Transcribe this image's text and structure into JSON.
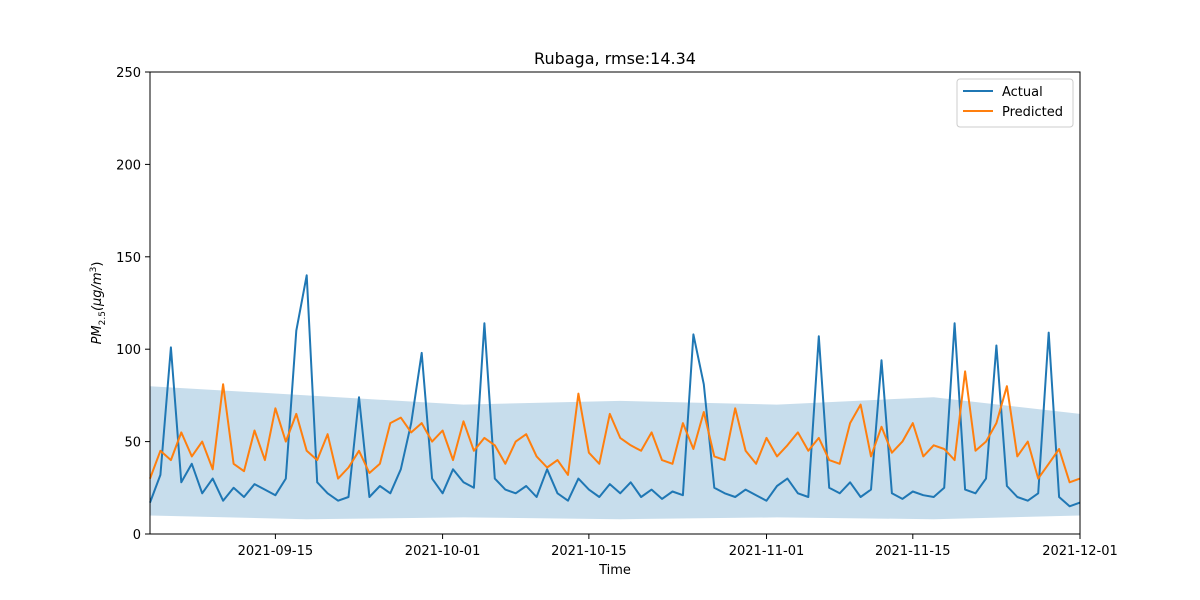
{
  "chart_data": {
    "type": "line",
    "title": "Rubaga, rmse:14.34",
    "xlabel": "Time",
    "ylabel": {
      "base": "PM",
      "subscript": "2.5",
      "units_prefix": "(μg/m",
      "units_superscript": "3",
      "units_suffix": ")"
    },
    "xlim": [
      "2021-09-03",
      "2021-12-01"
    ],
    "ylim": [
      0,
      250
    ],
    "x_ticks": [
      "2021-09-15",
      "2021-10-01",
      "2021-10-15",
      "2021-11-01",
      "2021-11-15",
      "2021-12-01"
    ],
    "y_ticks": [
      0,
      50,
      100,
      150,
      200,
      250
    ],
    "grid": false,
    "legend_position": "top-right",
    "series": [
      {
        "name": "Actual",
        "color": "#1f77b4",
        "points": [
          [
            "2021-09-03",
            17
          ],
          [
            "2021-09-04",
            32
          ],
          [
            "2021-09-05",
            101
          ],
          [
            "2021-09-06",
            28
          ],
          [
            "2021-09-07",
            38
          ],
          [
            "2021-09-08",
            22
          ],
          [
            "2021-09-09",
            30
          ],
          [
            "2021-09-10",
            18
          ],
          [
            "2021-09-11",
            25
          ],
          [
            "2021-09-12",
            20
          ],
          [
            "2021-09-13",
            27
          ],
          [
            "2021-09-14",
            24
          ],
          [
            "2021-09-15",
            21
          ],
          [
            "2021-09-16",
            30
          ],
          [
            "2021-09-17",
            110
          ],
          [
            "2021-09-18",
            140
          ],
          [
            "2021-09-19",
            28
          ],
          [
            "2021-09-20",
            22
          ],
          [
            "2021-09-21",
            18
          ],
          [
            "2021-09-22",
            20
          ],
          [
            "2021-09-23",
            74
          ],
          [
            "2021-09-24",
            20
          ],
          [
            "2021-09-25",
            26
          ],
          [
            "2021-09-26",
            22
          ],
          [
            "2021-09-27",
            35
          ],
          [
            "2021-09-28",
            60
          ],
          [
            "2021-09-29",
            98
          ],
          [
            "2021-09-30",
            30
          ],
          [
            "2021-10-01",
            22
          ],
          [
            "2021-10-02",
            35
          ],
          [
            "2021-10-03",
            28
          ],
          [
            "2021-10-04",
            25
          ],
          [
            "2021-10-05",
            114
          ],
          [
            "2021-10-06",
            30
          ],
          [
            "2021-10-07",
            24
          ],
          [
            "2021-10-08",
            22
          ],
          [
            "2021-10-09",
            26
          ],
          [
            "2021-10-10",
            20
          ],
          [
            "2021-10-11",
            35
          ],
          [
            "2021-10-12",
            22
          ],
          [
            "2021-10-13",
            18
          ],
          [
            "2021-10-14",
            30
          ],
          [
            "2021-10-15",
            24
          ],
          [
            "2021-10-16",
            20
          ],
          [
            "2021-10-17",
            27
          ],
          [
            "2021-10-18",
            22
          ],
          [
            "2021-10-19",
            28
          ],
          [
            "2021-10-20",
            20
          ],
          [
            "2021-10-21",
            24
          ],
          [
            "2021-10-22",
            19
          ],
          [
            "2021-10-23",
            23
          ],
          [
            "2021-10-24",
            21
          ],
          [
            "2021-10-25",
            108
          ],
          [
            "2021-10-26",
            81
          ],
          [
            "2021-10-27",
            25
          ],
          [
            "2021-10-28",
            22
          ],
          [
            "2021-10-29",
            20
          ],
          [
            "2021-10-30",
            24
          ],
          [
            "2021-10-31",
            21
          ],
          [
            "2021-11-01",
            18
          ],
          [
            "2021-11-02",
            26
          ],
          [
            "2021-11-03",
            30
          ],
          [
            "2021-11-04",
            22
          ],
          [
            "2021-11-05",
            20
          ],
          [
            "2021-11-06",
            107
          ],
          [
            "2021-11-07",
            25
          ],
          [
            "2021-11-08",
            22
          ],
          [
            "2021-11-09",
            28
          ],
          [
            "2021-11-10",
            20
          ],
          [
            "2021-11-11",
            24
          ],
          [
            "2021-11-12",
            94
          ],
          [
            "2021-11-13",
            22
          ],
          [
            "2021-11-14",
            19
          ],
          [
            "2021-11-15",
            23
          ],
          [
            "2021-11-16",
            21
          ],
          [
            "2021-11-17",
            20
          ],
          [
            "2021-11-18",
            25
          ],
          [
            "2021-11-19",
            114
          ],
          [
            "2021-11-20",
            24
          ],
          [
            "2021-11-21",
            22
          ],
          [
            "2021-11-22",
            30
          ],
          [
            "2021-11-23",
            102
          ],
          [
            "2021-11-24",
            26
          ],
          [
            "2021-11-25",
            20
          ],
          [
            "2021-11-26",
            18
          ],
          [
            "2021-11-27",
            22
          ],
          [
            "2021-11-28",
            109
          ],
          [
            "2021-11-29",
            20
          ],
          [
            "2021-11-30",
            15
          ],
          [
            "2021-12-01",
            17
          ]
        ]
      },
      {
        "name": "Predicted",
        "color": "#ff7f0e",
        "points": [
          [
            "2021-09-03",
            30
          ],
          [
            "2021-09-04",
            45
          ],
          [
            "2021-09-05",
            40
          ],
          [
            "2021-09-06",
            55
          ],
          [
            "2021-09-07",
            42
          ],
          [
            "2021-09-08",
            50
          ],
          [
            "2021-09-09",
            35
          ],
          [
            "2021-09-10",
            81
          ],
          [
            "2021-09-11",
            38
          ],
          [
            "2021-09-12",
            34
          ],
          [
            "2021-09-13",
            56
          ],
          [
            "2021-09-14",
            40
          ],
          [
            "2021-09-15",
            68
          ],
          [
            "2021-09-16",
            50
          ],
          [
            "2021-09-17",
            65
          ],
          [
            "2021-09-18",
            45
          ],
          [
            "2021-09-19",
            40
          ],
          [
            "2021-09-20",
            54
          ],
          [
            "2021-09-21",
            30
          ],
          [
            "2021-09-22",
            36
          ],
          [
            "2021-09-23",
            45
          ],
          [
            "2021-09-24",
            33
          ],
          [
            "2021-09-25",
            38
          ],
          [
            "2021-09-26",
            60
          ],
          [
            "2021-09-27",
            63
          ],
          [
            "2021-09-28",
            55
          ],
          [
            "2021-09-29",
            60
          ],
          [
            "2021-09-30",
            50
          ],
          [
            "2021-10-01",
            56
          ],
          [
            "2021-10-02",
            40
          ],
          [
            "2021-10-03",
            61
          ],
          [
            "2021-10-04",
            45
          ],
          [
            "2021-10-05",
            52
          ],
          [
            "2021-10-06",
            48
          ],
          [
            "2021-10-07",
            38
          ],
          [
            "2021-10-08",
            50
          ],
          [
            "2021-10-09",
            54
          ],
          [
            "2021-10-10",
            42
          ],
          [
            "2021-10-11",
            36
          ],
          [
            "2021-10-12",
            40
          ],
          [
            "2021-10-13",
            32
          ],
          [
            "2021-10-14",
            76
          ],
          [
            "2021-10-15",
            44
          ],
          [
            "2021-10-16",
            38
          ],
          [
            "2021-10-17",
            65
          ],
          [
            "2021-10-18",
            52
          ],
          [
            "2021-10-19",
            48
          ],
          [
            "2021-10-20",
            45
          ],
          [
            "2021-10-21",
            55
          ],
          [
            "2021-10-22",
            40
          ],
          [
            "2021-10-23",
            38
          ],
          [
            "2021-10-24",
            60
          ],
          [
            "2021-10-25",
            46
          ],
          [
            "2021-10-26",
            66
          ],
          [
            "2021-10-27",
            42
          ],
          [
            "2021-10-28",
            40
          ],
          [
            "2021-10-29",
            68
          ],
          [
            "2021-10-30",
            45
          ],
          [
            "2021-10-31",
            38
          ],
          [
            "2021-11-01",
            52
          ],
          [
            "2021-11-02",
            42
          ],
          [
            "2021-11-03",
            48
          ],
          [
            "2021-11-04",
            55
          ],
          [
            "2021-11-05",
            45
          ],
          [
            "2021-11-06",
            52
          ],
          [
            "2021-11-07",
            40
          ],
          [
            "2021-11-08",
            38
          ],
          [
            "2021-11-09",
            60
          ],
          [
            "2021-11-10",
            70
          ],
          [
            "2021-11-11",
            42
          ],
          [
            "2021-11-12",
            58
          ],
          [
            "2021-11-13",
            44
          ],
          [
            "2021-11-14",
            50
          ],
          [
            "2021-11-15",
            60
          ],
          [
            "2021-11-16",
            42
          ],
          [
            "2021-11-17",
            48
          ],
          [
            "2021-11-18",
            46
          ],
          [
            "2021-11-19",
            40
          ],
          [
            "2021-11-20",
            88
          ],
          [
            "2021-11-21",
            45
          ],
          [
            "2021-11-22",
            50
          ],
          [
            "2021-11-23",
            60
          ],
          [
            "2021-11-24",
            80
          ],
          [
            "2021-11-25",
            42
          ],
          [
            "2021-11-26",
            50
          ],
          [
            "2021-11-27",
            30
          ],
          [
            "2021-11-28",
            38
          ],
          [
            "2021-11-29",
            46
          ],
          [
            "2021-11-30",
            28
          ],
          [
            "2021-12-01",
            30
          ]
        ]
      }
    ],
    "uncertainty_band": {
      "color": "#1f77b4",
      "opacity": 0.25,
      "lower": [
        [
          "2021-09-03",
          10
        ],
        [
          "2021-09-18",
          8
        ],
        [
          "2021-10-03",
          9
        ],
        [
          "2021-10-18",
          8
        ],
        [
          "2021-11-02",
          9
        ],
        [
          "2021-11-17",
          8
        ],
        [
          "2021-12-01",
          10
        ]
      ],
      "upper": [
        [
          "2021-09-03",
          80
        ],
        [
          "2021-09-18",
          75
        ],
        [
          "2021-10-03",
          70
        ],
        [
          "2021-10-18",
          72
        ],
        [
          "2021-11-02",
          70
        ],
        [
          "2021-11-17",
          74
        ],
        [
          "2021-12-01",
          65
        ]
      ]
    }
  }
}
